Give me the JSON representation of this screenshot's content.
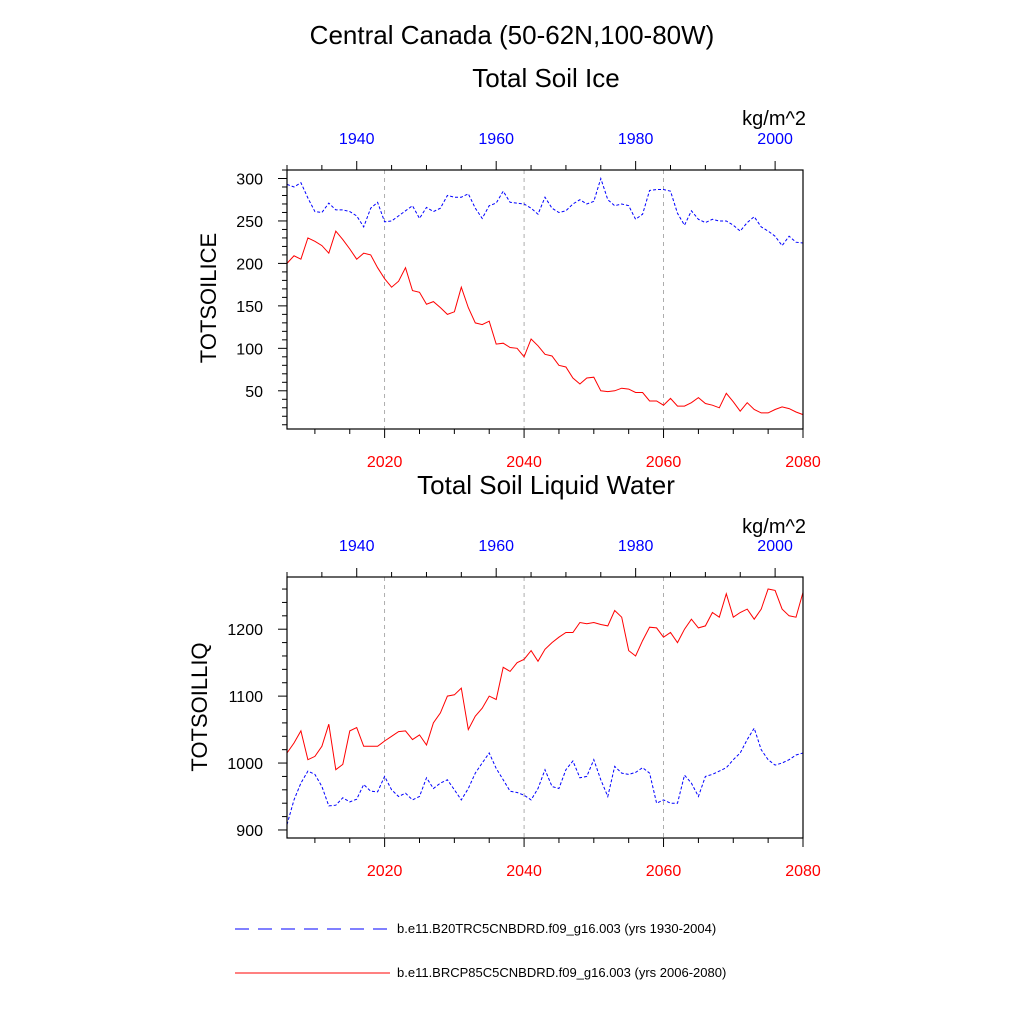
{
  "figure": {
    "title": "Central Canada (50-62N,100-80W)",
    "legend": [
      {
        "label": "b.e11.B20TRC5CNBDRD.f09_g16.003 (yrs 1930-2004)",
        "color": "#0000ff",
        "style": "dashed"
      },
      {
        "label": "b.e11.BRCP85C5CNBDRD.f09_g16.003 (yrs 2006-2080)",
        "color": "#ff0000",
        "style": "solid"
      }
    ]
  },
  "chart_data": [
    {
      "type": "line",
      "title": "Total Soil Ice",
      "units": "kg/m^2",
      "ylabel": "TOTSOILICE",
      "ylim": [
        5,
        310
      ],
      "yticks": [
        "50",
        "100",
        "150",
        "200",
        "250",
        "300"
      ],
      "bottom_axis": {
        "range": [
          2006,
          2080
        ],
        "ticks": [
          "2020",
          "2040",
          "2060",
          "2080"
        ],
        "color": "#ff0000"
      },
      "top_axis": {
        "range": [
          1930,
          2004
        ],
        "ticks": [
          "1940",
          "1960",
          "1980",
          "2000"
        ],
        "color": "#0000ff"
      },
      "grid_lines_x": [
        2020,
        2040,
        2060
      ],
      "series": [
        {
          "color": "#0000ff",
          "style": "dashed",
          "axis": "top",
          "x": [
            1930,
            1931,
            1932,
            1933,
            1934,
            1935,
            1936,
            1937,
            1938,
            1939,
            1940,
            1941,
            1942,
            1943,
            1944,
            1945,
            1946,
            1947,
            1948,
            1949,
            1950,
            1951,
            1952,
            1953,
            1954,
            1955,
            1956,
            1957,
            1958,
            1959,
            1960,
            1961,
            1962,
            1963,
            1964,
            1965,
            1966,
            1967,
            1968,
            1969,
            1970,
            1971,
            1972,
            1973,
            1974,
            1975,
            1976,
            1977,
            1978,
            1979,
            1980,
            1981,
            1982,
            1983,
            1984,
            1985,
            1986,
            1987,
            1988,
            1989,
            1990,
            1991,
            1992,
            1993,
            1994,
            1995,
            1996,
            1997,
            1998,
            1999,
            2000,
            2001,
            2002,
            2003,
            2004
          ],
          "values": [
            293,
            290,
            295,
            277,
            261,
            260,
            271,
            263,
            263,
            261,
            256,
            243,
            265,
            272,
            249,
            250,
            256,
            262,
            268,
            253,
            266,
            261,
            265,
            280,
            278,
            278,
            282,
            265,
            253,
            268,
            271,
            285,
            272,
            271,
            270,
            265,
            258,
            278,
            265,
            260,
            262,
            270,
            275,
            270,
            273,
            300,
            275,
            268,
            270,
            268,
            252,
            258,
            286,
            287,
            287,
            285,
            259,
            245,
            262,
            252,
            248,
            252,
            250,
            250,
            245,
            238,
            248,
            255,
            243,
            238,
            232,
            221,
            232,
            225,
            224
          ]
        },
        {
          "color": "#ff0000",
          "style": "solid",
          "axis": "bottom",
          "x": [
            2006,
            2007,
            2008,
            2009,
            2010,
            2011,
            2012,
            2013,
            2014,
            2015,
            2016,
            2017,
            2018,
            2019,
            2020,
            2021,
            2022,
            2023,
            2024,
            2025,
            2026,
            2027,
            2028,
            2029,
            2030,
            2031,
            2032,
            2033,
            2034,
            2035,
            2036,
            2037,
            2038,
            2039,
            2040,
            2041,
            2042,
            2043,
            2044,
            2045,
            2046,
            2047,
            2048,
            2049,
            2050,
            2051,
            2052,
            2053,
            2054,
            2055,
            2056,
            2057,
            2058,
            2059,
            2060,
            2061,
            2062,
            2063,
            2064,
            2065,
            2066,
            2067,
            2068,
            2069,
            2070,
            2071,
            2072,
            2073,
            2074,
            2075,
            2076,
            2077,
            2078,
            2079,
            2080
          ],
          "values": [
            200,
            209,
            205,
            230,
            226,
            221,
            212,
            238,
            228,
            217,
            205,
            212,
            210,
            195,
            182,
            172,
            179,
            195,
            168,
            166,
            152,
            155,
            148,
            140,
            143,
            172,
            148,
            130,
            128,
            132,
            105,
            106,
            101,
            100,
            90,
            111,
            103,
            93,
            91,
            80,
            78,
            65,
            58,
            65,
            66,
            50,
            49,
            50,
            53,
            52,
            48,
            48,
            38,
            38,
            33,
            41,
            32,
            32,
            36,
            42,
            35,
            33,
            30,
            47,
            37,
            26,
            36,
            28,
            24,
            24,
            28,
            31,
            29,
            25,
            22
          ]
        }
      ]
    },
    {
      "type": "line",
      "title": "Total Soil Liquid Water",
      "units": "kg/m^2",
      "ylabel": "TOTSOILLIQ",
      "ylim": [
        888,
        1278
      ],
      "yticks": [
        "900",
        "1000",
        "1100",
        "1200"
      ],
      "bottom_axis": {
        "range": [
          2006,
          2080
        ],
        "ticks": [
          "2020",
          "2040",
          "2060",
          "2080"
        ],
        "color": "#ff0000"
      },
      "top_axis": {
        "range": [
          1930,
          2004
        ],
        "ticks": [
          "1940",
          "1960",
          "1980",
          "2000"
        ],
        "color": "#0000ff"
      },
      "grid_lines_x": [
        2020,
        2040,
        2060
      ],
      "series": [
        {
          "color": "#0000ff",
          "style": "dashed",
          "axis": "top",
          "x": [
            1930,
            1931,
            1932,
            1933,
            1934,
            1935,
            1936,
            1937,
            1938,
            1939,
            1940,
            1941,
            1942,
            1943,
            1944,
            1945,
            1946,
            1947,
            1948,
            1949,
            1950,
            1951,
            1952,
            1953,
            1954,
            1955,
            1956,
            1957,
            1958,
            1959,
            1960,
            1961,
            1962,
            1963,
            1964,
            1965,
            1966,
            1967,
            1968,
            1969,
            1970,
            1971,
            1972,
            1973,
            1974,
            1975,
            1976,
            1977,
            1978,
            1979,
            1980,
            1981,
            1982,
            1983,
            1984,
            1985,
            1986,
            1987,
            1988,
            1989,
            1990,
            1991,
            1992,
            1993,
            1994,
            1995,
            1996,
            1997,
            1998,
            1999,
            2000,
            2001,
            2002,
            2003,
            2004
          ],
          "values": [
            908,
            945,
            970,
            988,
            983,
            965,
            936,
            937,
            948,
            942,
            946,
            968,
            958,
            957,
            980,
            960,
            950,
            955,
            945,
            950,
            978,
            962,
            970,
            975,
            960,
            945,
            962,
            985,
            1000,
            1015,
            992,
            975,
            958,
            956,
            952,
            945,
            962,
            990,
            965,
            962,
            990,
            1003,
            978,
            980,
            1005,
            975,
            950,
            995,
            985,
            983,
            986,
            993,
            985,
            940,
            945,
            940,
            940,
            982,
            970,
            950,
            980,
            983,
            988,
            993,
            1005,
            1015,
            1035,
            1052,
            1020,
            1005,
            997,
            1000,
            1005,
            1012,
            1015
          ]
        },
        {
          "color": "#ff0000",
          "style": "solid",
          "axis": "bottom",
          "x": [
            2006,
            2007,
            2008,
            2009,
            2010,
            2011,
            2012,
            2013,
            2014,
            2015,
            2016,
            2017,
            2018,
            2019,
            2020,
            2021,
            2022,
            2023,
            2024,
            2025,
            2026,
            2027,
            2028,
            2029,
            2030,
            2031,
            2032,
            2033,
            2034,
            2035,
            2036,
            2037,
            2038,
            2039,
            2040,
            2041,
            2042,
            2043,
            2044,
            2045,
            2046,
            2047,
            2048,
            2049,
            2050,
            2051,
            2052,
            2053,
            2054,
            2055,
            2056,
            2057,
            2058,
            2059,
            2060,
            2061,
            2062,
            2063,
            2064,
            2065,
            2066,
            2067,
            2068,
            2069,
            2070,
            2071,
            2072,
            2073,
            2074,
            2075,
            2076,
            2077,
            2078,
            2079,
            2080
          ],
          "values": [
            1015,
            1030,
            1048,
            1005,
            1010,
            1025,
            1058,
            990,
            998,
            1048,
            1053,
            1025,
            1025,
            1025,
            1033,
            1040,
            1047,
            1048,
            1035,
            1042,
            1027,
            1060,
            1075,
            1100,
            1102,
            1112,
            1050,
            1070,
            1082,
            1100,
            1095,
            1143,
            1137,
            1150,
            1155,
            1168,
            1152,
            1170,
            1180,
            1188,
            1195,
            1195,
            1210,
            1208,
            1210,
            1207,
            1205,
            1228,
            1218,
            1168,
            1160,
            1183,
            1203,
            1202,
            1188,
            1195,
            1180,
            1200,
            1215,
            1202,
            1205,
            1225,
            1218,
            1253,
            1218,
            1225,
            1230,
            1215,
            1230,
            1260,
            1258,
            1230,
            1220,
            1218,
            1255
          ]
        }
      ]
    }
  ]
}
